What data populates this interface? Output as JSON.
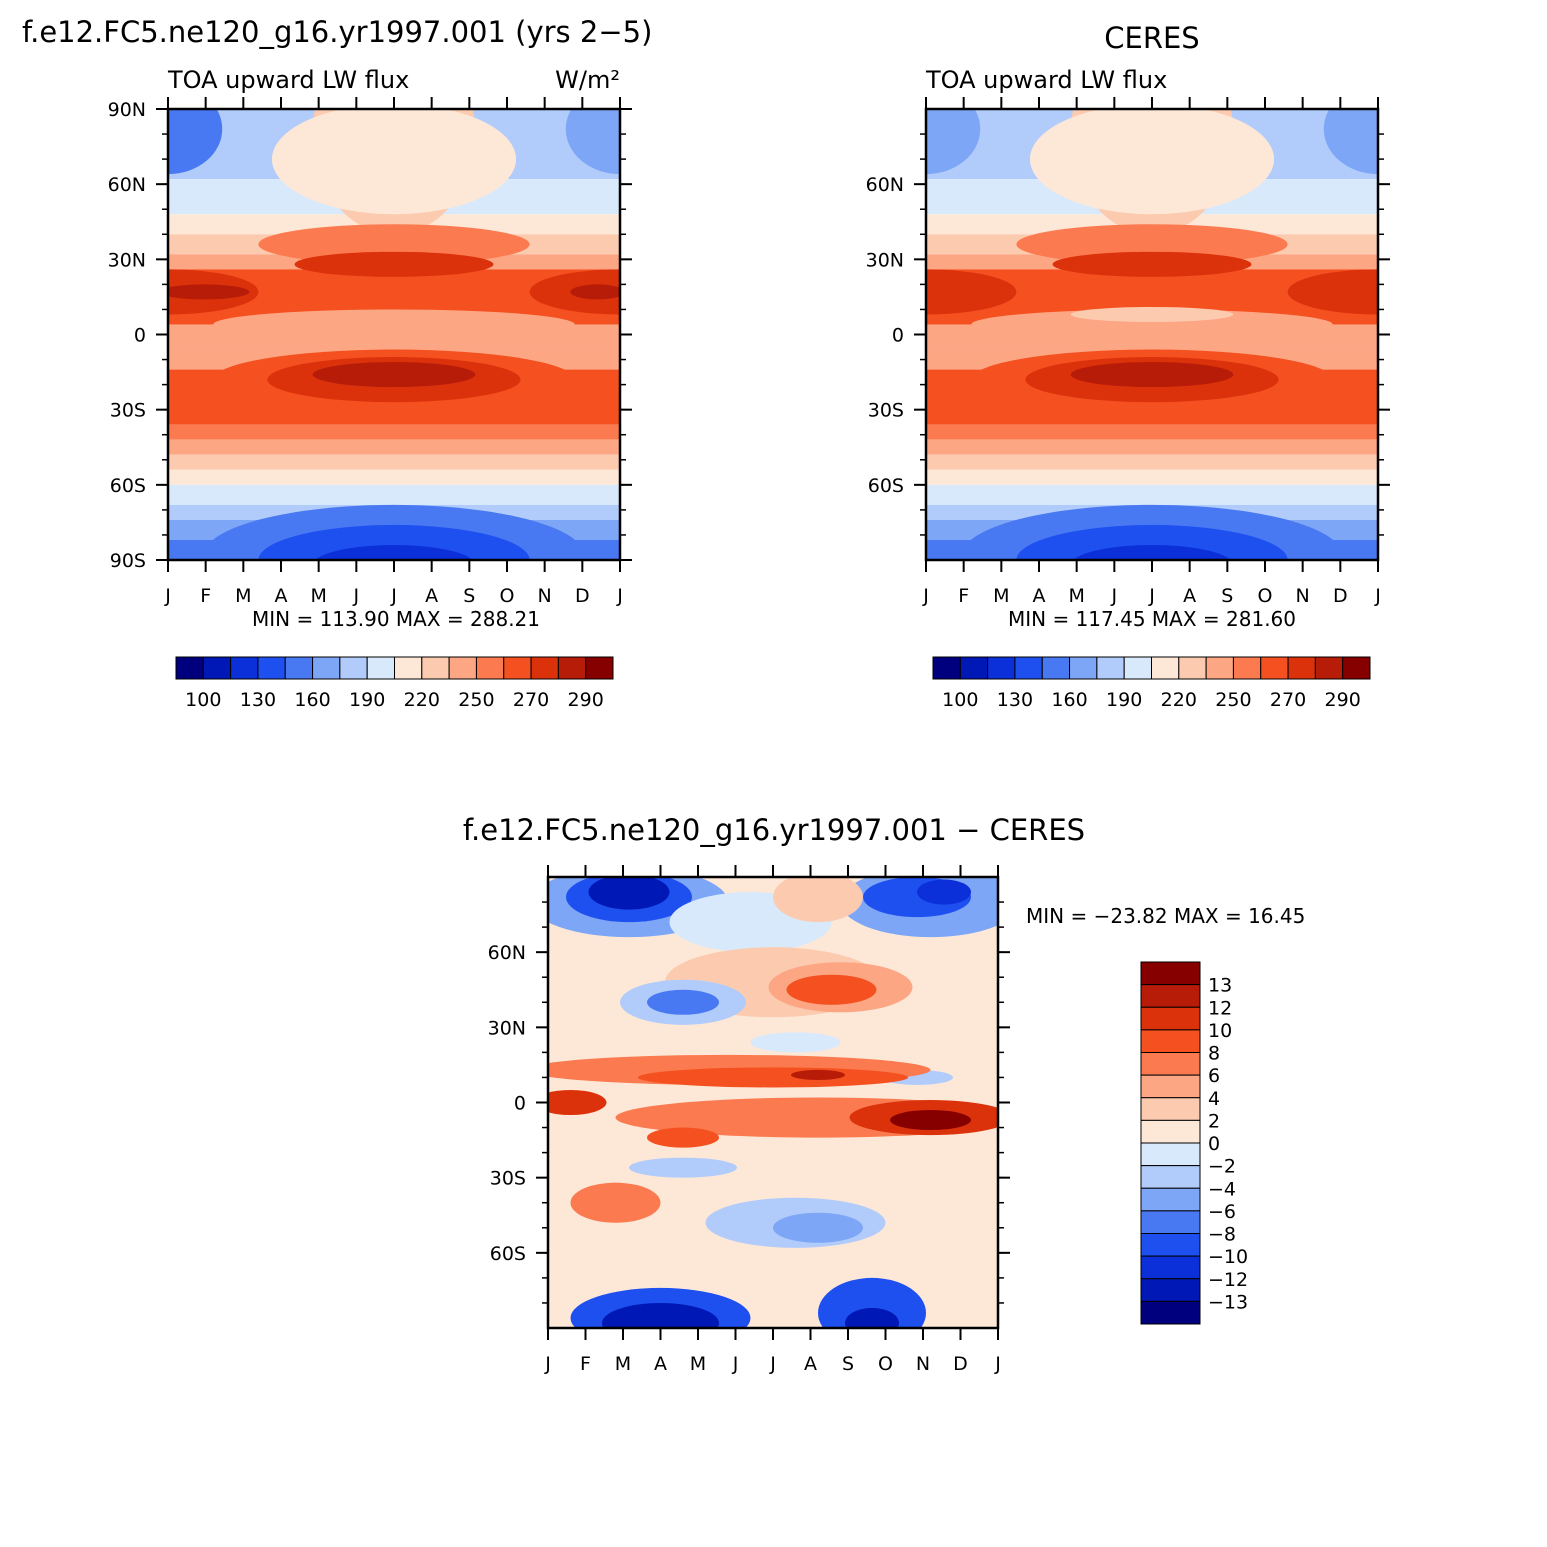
{
  "panels": [
    {
      "title": "f.e12.FC5.ne120_g16.yr1997.001 (yrs 2−5)",
      "left_label": "TOA upward LW flux",
      "right_label": "W/m²",
      "minmax": "MIN = 113.90 MAX = 288.21",
      "ylabels": [
        "90N",
        "60N",
        "30N",
        "0",
        "30S",
        "60S",
        "90S"
      ]
    },
    {
      "title": "CERES",
      "left_label": "TOA upward LW flux",
      "right_label": "",
      "minmax": "MIN = 117.45 MAX = 281.60",
      "ylabels": [
        "60N",
        "30N",
        "0",
        "30S",
        "60S"
      ]
    },
    {
      "title": "f.e12.FC5.ne120_g16.yr1997.001 − CERES",
      "minmax": "MIN = −23.82 MAX =  16.45",
      "ylabels": [
        "60N",
        "30N",
        "0",
        "30S",
        "60S"
      ]
    }
  ],
  "chart_data": [
    {
      "type": "heatmap",
      "title": "f.e12.FC5.ne120_g16.yr1997.001 (yrs 2−5)",
      "variable": "TOA upward LW flux",
      "units": "W/m²",
      "x_ticks": [
        "J",
        "F",
        "M",
        "A",
        "M",
        "J",
        "J",
        "A",
        "S",
        "O",
        "N",
        "D",
        "J"
      ],
      "y_ticks": [
        "90N",
        "60N",
        "30N",
        "0",
        "30S",
        "60S",
        "90S"
      ],
      "ylim": [
        -90,
        90
      ],
      "min": 113.9,
      "max": 288.21,
      "colorbar_levels": [
        "100",
        "130",
        "160",
        "190",
        "220",
        "250",
        "270",
        "290"
      ]
    },
    {
      "type": "heatmap",
      "title": "CERES",
      "variable": "TOA upward LW flux",
      "x_ticks": [
        "J",
        "F",
        "M",
        "A",
        "M",
        "J",
        "J",
        "A",
        "S",
        "O",
        "N",
        "D",
        "J"
      ],
      "y_ticks": [
        "60N",
        "30N",
        "0",
        "30S",
        "60S"
      ],
      "ylim": [
        -90,
        90
      ],
      "min": 117.45,
      "max": 281.6,
      "colorbar_levels": [
        "100",
        "130",
        "160",
        "190",
        "220",
        "250",
        "270",
        "290"
      ]
    },
    {
      "type": "heatmap",
      "title": "f.e12.FC5.ne120_g16.yr1997.001 − CERES",
      "x_ticks": [
        "J",
        "F",
        "M",
        "A",
        "M",
        "J",
        "J",
        "A",
        "S",
        "O",
        "N",
        "D",
        "J"
      ],
      "y_ticks": [
        "60N",
        "30N",
        "0",
        "30S",
        "60S"
      ],
      "ylim": [
        -90,
        90
      ],
      "min": -23.82,
      "max": 16.45,
      "colorbar_levels": [
        "13",
        "12",
        "10",
        "8",
        "6",
        "4",
        "2",
        "0",
        "−2",
        "−4",
        "−6",
        "−8",
        "−10",
        "−12",
        "−13"
      ]
    }
  ],
  "palette": [
    "#00007f",
    "#0018b5",
    "#0b2fd9",
    "#1e50f0",
    "#4979f2",
    "#7ea6f6",
    "#b1ccfa",
    "#d8e9fc",
    "#fde8d8",
    "#fccbaf",
    "#fca684",
    "#fb7a4f",
    "#f5501f",
    "#dc320c",
    "#b71c08",
    "#870000"
  ]
}
